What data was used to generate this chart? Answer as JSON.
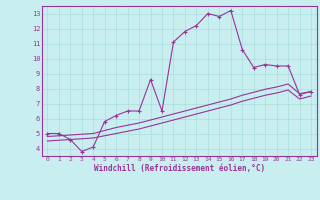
{
  "xlabel": "Windchill (Refroidissement éolien,°C)",
  "xlim": [
    -0.5,
    23.5
  ],
  "ylim": [
    3.5,
    13.5
  ],
  "xticks": [
    0,
    1,
    2,
    3,
    4,
    5,
    6,
    7,
    8,
    9,
    10,
    11,
    12,
    13,
    14,
    15,
    16,
    17,
    18,
    19,
    20,
    21,
    22,
    23
  ],
  "yticks": [
    4,
    5,
    6,
    7,
    8,
    9,
    10,
    11,
    12,
    13
  ],
  "bg_color": "#c8eef0",
  "line_color": "#993399",
  "grid_color": "#aadddd",
  "line1_x": [
    0,
    1,
    2,
    3,
    4,
    5,
    6,
    7,
    8,
    9,
    10,
    11,
    12,
    13,
    14,
    15,
    16,
    17,
    18,
    19,
    20,
    21,
    22,
    23
  ],
  "line1_y": [
    5.0,
    5.0,
    4.6,
    3.8,
    4.1,
    5.8,
    6.2,
    6.5,
    6.5,
    8.6,
    6.5,
    11.1,
    11.8,
    12.2,
    13.0,
    12.8,
    13.2,
    10.6,
    9.4,
    9.6,
    9.5,
    9.5,
    7.6,
    7.8
  ],
  "line2_x": [
    0,
    1,
    2,
    3,
    4,
    5,
    6,
    7,
    8,
    9,
    10,
    11,
    12,
    13,
    14,
    15,
    16,
    17,
    18,
    19,
    20,
    21,
    22,
    23
  ],
  "line2_y": [
    4.8,
    4.85,
    4.9,
    4.95,
    5.0,
    5.2,
    5.4,
    5.55,
    5.7,
    5.9,
    6.1,
    6.3,
    6.5,
    6.7,
    6.9,
    7.1,
    7.3,
    7.55,
    7.75,
    7.95,
    8.1,
    8.3,
    7.65,
    7.8
  ],
  "line3_x": [
    0,
    1,
    2,
    3,
    4,
    5,
    6,
    7,
    8,
    9,
    10,
    11,
    12,
    13,
    14,
    15,
    16,
    17,
    18,
    19,
    20,
    21,
    22,
    23
  ],
  "line3_y": [
    4.5,
    4.55,
    4.6,
    4.65,
    4.7,
    4.85,
    5.0,
    5.15,
    5.3,
    5.5,
    5.7,
    5.9,
    6.1,
    6.3,
    6.5,
    6.7,
    6.9,
    7.15,
    7.35,
    7.55,
    7.7,
    7.9,
    7.3,
    7.5
  ]
}
